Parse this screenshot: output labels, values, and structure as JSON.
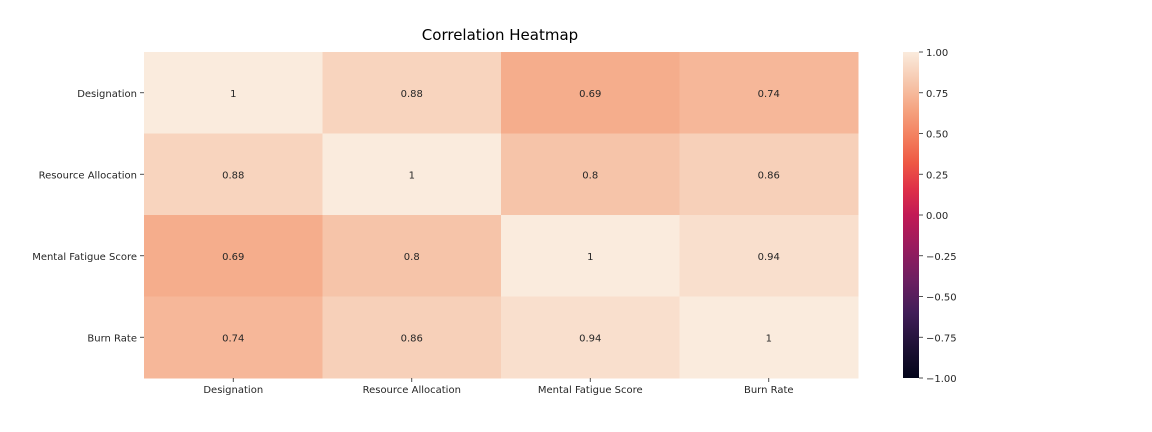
{
  "chart_data": {
    "type": "heatmap",
    "title": "Correlation Heatmap",
    "rows": [
      "Designation",
      "Resource Allocation",
      "Mental Fatigue Score",
      "Burn Rate"
    ],
    "columns": [
      "Designation",
      "Resource Allocation",
      "Mental Fatigue Score",
      "Burn Rate"
    ],
    "values": [
      [
        1,
        0.88,
        0.69,
        0.74
      ],
      [
        0.88,
        1,
        0.8,
        0.86
      ],
      [
        0.69,
        0.8,
        1,
        0.94
      ],
      [
        0.74,
        0.86,
        0.94,
        1
      ]
    ],
    "annotations": [
      [
        "1",
        "0.88",
        "0.69",
        "0.74"
      ],
      [
        "0.88",
        "1",
        "0.8",
        "0.86"
      ],
      [
        "0.69",
        "0.8",
        "1",
        "0.94"
      ],
      [
        "0.74",
        "0.86",
        "0.94",
        "1"
      ]
    ],
    "colorbar": {
      "range": [
        -1.0,
        1.0
      ],
      "ticks": [
        1.0,
        0.75,
        0.5,
        0.25,
        0.0,
        -0.25,
        -0.5,
        -0.75,
        -1.0
      ],
      "tick_labels": [
        "1.00",
        "0.75",
        "0.50",
        "0.25",
        "0.00",
        "−0.25",
        "−0.50",
        "−0.75",
        "−1.00"
      ],
      "colormap": "rocket"
    }
  }
}
